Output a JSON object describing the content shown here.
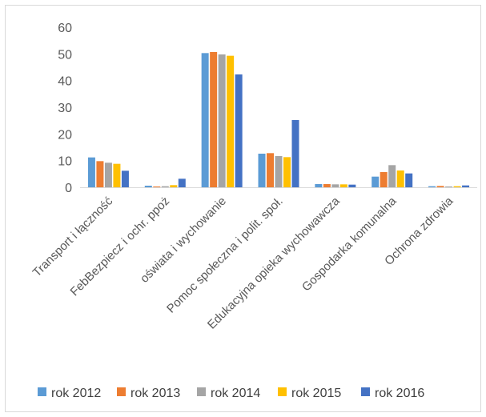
{
  "chart_data": {
    "type": "bar",
    "categories": [
      "Transport i łączność",
      "FebBezpiecz i ochr. ppoż",
      "oświata i wychowanie",
      "Pomoc społeczna i polit. społ.",
      "Edukacyjna opieka wychowawcza",
      "Gospodarka komunalna",
      "Ochrona zdrowia"
    ],
    "series": [
      {
        "name": "rok 2012",
        "color": "#5B9BD5",
        "values": [
          11.2,
          0.6,
          50.3,
          12.6,
          1.2,
          4.0,
          0.4
        ]
      },
      {
        "name": "rok 2013",
        "color": "#ED7D31",
        "values": [
          9.8,
          0.3,
          50.7,
          12.8,
          1.2,
          5.7,
          0.5
        ]
      },
      {
        "name": "rok 2014",
        "color": "#A5A5A5",
        "values": [
          9.2,
          0.4,
          49.8,
          11.7,
          1.1,
          8.3,
          0.3
        ]
      },
      {
        "name": "rok 2015",
        "color": "#FFC000",
        "values": [
          8.8,
          0.8,
          49.3,
          11.3,
          1.1,
          6.3,
          0.4
        ]
      },
      {
        "name": "rok 2016",
        "color": "#4472C4",
        "values": [
          6.2,
          3.2,
          42.3,
          25.2,
          1.0,
          5.2,
          0.7
        ]
      }
    ],
    "yticks": [
      "0",
      "10",
      "20",
      "30",
      "40",
      "50",
      "60"
    ],
    "ylim": [
      0,
      60
    ],
    "grid": false,
    "legend_position": "bottom"
  }
}
